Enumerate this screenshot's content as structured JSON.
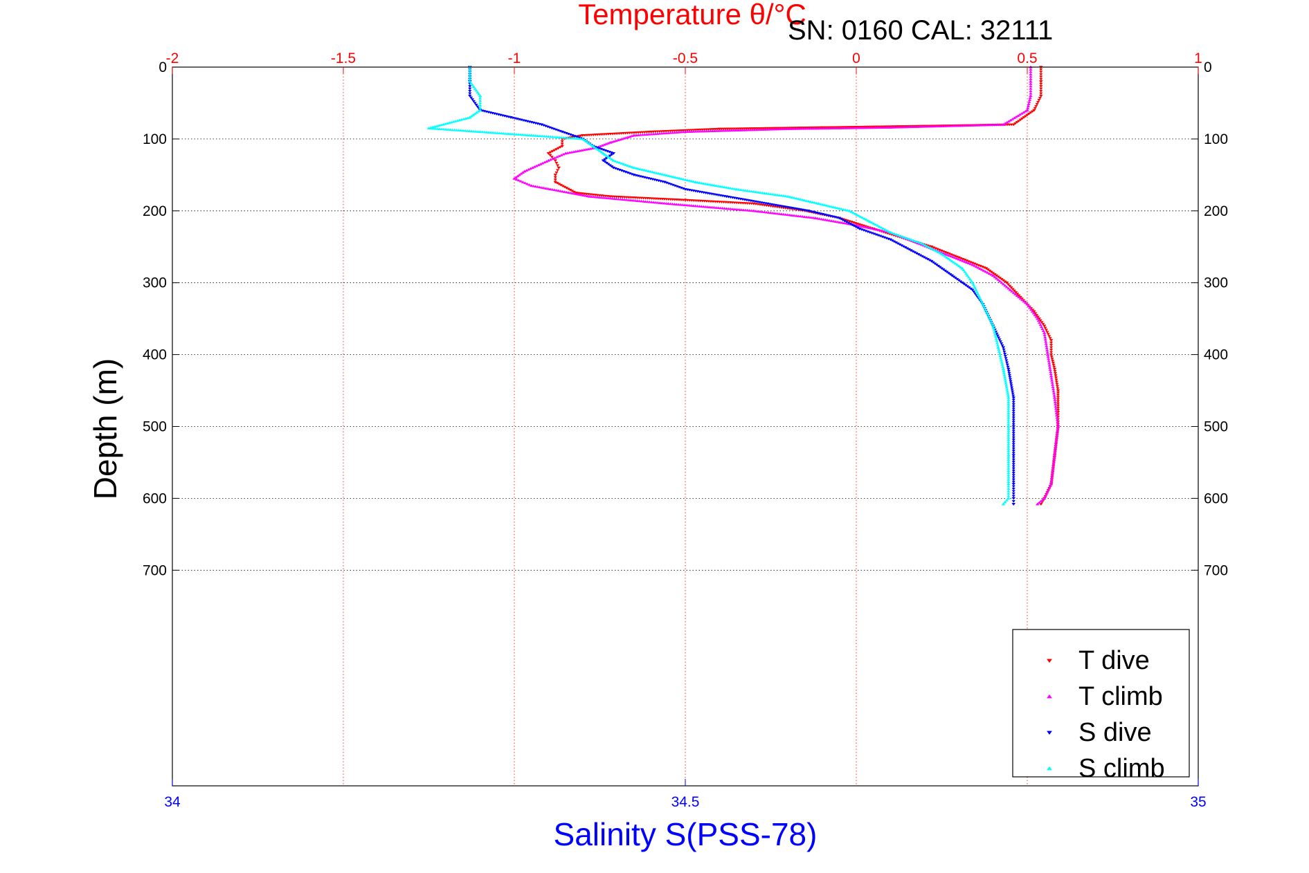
{
  "chart_data": {
    "type": "scatter",
    "title": "Temperature θ/°C",
    "subtitle": "SN: 0160  CAL: 32111",
    "ylabel": "Depth (m)",
    "xlabel_bottom": "Salinity S(PSS-78)",
    "y_axis": {
      "range": [
        0,
        1000
      ],
      "reversed": true,
      "ticks": [
        0,
        100,
        200,
        300,
        400,
        500,
        600,
        700
      ],
      "tick_labels": [
        "0",
        "100",
        "200",
        "300",
        "400",
        "500",
        "600",
        "700"
      ]
    },
    "x_top": {
      "range": [
        -2,
        1
      ],
      "ticks": [
        -2,
        -1.5,
        -1,
        -0.5,
        0,
        0.5,
        1
      ],
      "tick_labels": [
        "-2",
        "-1.5",
        "-1",
        "-0.5",
        "0",
        "0.5",
        "1"
      ],
      "color": "#ff0000"
    },
    "x_bottom": {
      "range": [
        34,
        35
      ],
      "ticks": [
        34,
        34.5,
        35
      ],
      "tick_labels": [
        "34",
        "34.5",
        "35"
      ],
      "color": "#0000ff"
    },
    "grid": true,
    "legend": {
      "position": "bottom-right",
      "entries": [
        "T dive",
        "T climb",
        "S dive",
        "S climb"
      ]
    },
    "series": [
      {
        "name": "T dive",
        "axis": "temperature",
        "color": "#ff0000",
        "marker": "triangle-down",
        "points": [
          [
            0.54,
            0
          ],
          [
            0.54,
            20
          ],
          [
            0.54,
            40
          ],
          [
            0.52,
            60
          ],
          [
            0.46,
            80
          ],
          [
            0.2,
            82
          ],
          [
            -0.1,
            84
          ],
          [
            -0.4,
            86
          ],
          [
            -0.6,
            90
          ],
          [
            -0.8,
            95
          ],
          [
            -0.86,
            100
          ],
          [
            -0.86,
            110
          ],
          [
            -0.9,
            120
          ],
          [
            -0.88,
            130
          ],
          [
            -0.87,
            140
          ],
          [
            -0.88,
            150
          ],
          [
            -0.88,
            160
          ],
          [
            -0.82,
            175
          ],
          [
            -0.72,
            180
          ],
          [
            -0.5,
            185
          ],
          [
            -0.3,
            190
          ],
          [
            -0.15,
            200
          ],
          [
            -0.05,
            210
          ],
          [
            0.05,
            225
          ],
          [
            0.15,
            240
          ],
          [
            0.22,
            250
          ],
          [
            0.3,
            265
          ],
          [
            0.38,
            280
          ],
          [
            0.44,
            300
          ],
          [
            0.48,
            320
          ],
          [
            0.52,
            340
          ],
          [
            0.55,
            360
          ],
          [
            0.57,
            380
          ],
          [
            0.57,
            400
          ],
          [
            0.58,
            420
          ],
          [
            0.59,
            450
          ],
          [
            0.59,
            480
          ],
          [
            0.59,
            500
          ],
          [
            0.58,
            540
          ],
          [
            0.57,
            580
          ],
          [
            0.55,
            600
          ],
          [
            0.54,
            608
          ]
        ]
      },
      {
        "name": "T climb",
        "axis": "temperature",
        "color": "#ff00ff",
        "marker": "triangle-up",
        "points": [
          [
            0.51,
            0
          ],
          [
            0.51,
            20
          ],
          [
            0.51,
            40
          ],
          [
            0.5,
            60
          ],
          [
            0.43,
            80
          ],
          [
            0.1,
            84
          ],
          [
            -0.2,
            86
          ],
          [
            -0.5,
            90
          ],
          [
            -0.65,
            95
          ],
          [
            -0.72,
            105
          ],
          [
            -0.76,
            112
          ],
          [
            -0.85,
            120
          ],
          [
            -0.9,
            130
          ],
          [
            -0.97,
            145
          ],
          [
            -1.0,
            155
          ],
          [
            -0.95,
            165
          ],
          [
            -0.78,
            180
          ],
          [
            -0.55,
            190
          ],
          [
            -0.3,
            200
          ],
          [
            -0.12,
            210
          ],
          [
            0.0,
            220
          ],
          [
            0.1,
            230
          ],
          [
            0.18,
            245
          ],
          [
            0.26,
            260
          ],
          [
            0.34,
            275
          ],
          [
            0.4,
            290
          ],
          [
            0.45,
            310
          ],
          [
            0.5,
            330
          ],
          [
            0.53,
            350
          ],
          [
            0.55,
            370
          ],
          [
            0.56,
            400
          ],
          [
            0.57,
            430
          ],
          [
            0.58,
            460
          ],
          [
            0.59,
            500
          ],
          [
            0.58,
            540
          ],
          [
            0.57,
            580
          ],
          [
            0.55,
            600
          ],
          [
            0.53,
            608
          ]
        ]
      },
      {
        "name": "S dive",
        "axis": "salinity",
        "color": "#0000ff",
        "marker": "triangle-down",
        "points": [
          [
            34.29,
            0
          ],
          [
            34.29,
            20
          ],
          [
            34.29,
            40
          ],
          [
            34.3,
            60
          ],
          [
            34.33,
            70
          ],
          [
            34.36,
            80
          ],
          [
            34.38,
            90
          ],
          [
            34.4,
            100
          ],
          [
            34.41,
            110
          ],
          [
            34.43,
            120
          ],
          [
            34.42,
            130
          ],
          [
            34.43,
            140
          ],
          [
            34.45,
            150
          ],
          [
            34.48,
            160
          ],
          [
            34.5,
            170
          ],
          [
            34.54,
            180
          ],
          [
            34.58,
            190
          ],
          [
            34.62,
            200
          ],
          [
            34.65,
            210
          ],
          [
            34.67,
            225
          ],
          [
            34.7,
            240
          ],
          [
            34.72,
            255
          ],
          [
            34.74,
            270
          ],
          [
            34.76,
            290
          ],
          [
            34.78,
            310
          ],
          [
            34.79,
            330
          ],
          [
            34.8,
            360
          ],
          [
            34.81,
            390
          ],
          [
            34.815,
            420
          ],
          [
            34.82,
            460
          ],
          [
            34.82,
            500
          ],
          [
            34.82,
            540
          ],
          [
            34.82,
            580
          ],
          [
            34.82,
            600
          ],
          [
            34.82,
            608
          ]
        ]
      },
      {
        "name": "S climb",
        "axis": "salinity",
        "color": "#00ffff",
        "marker": "triangle-up",
        "points": [
          [
            34.29,
            0
          ],
          [
            34.29,
            20
          ],
          [
            34.3,
            40
          ],
          [
            34.3,
            60
          ],
          [
            34.29,
            70
          ],
          [
            34.25,
            85
          ],
          [
            34.3,
            90
          ],
          [
            34.35,
            95
          ],
          [
            34.4,
            100
          ],
          [
            34.41,
            110
          ],
          [
            34.42,
            120
          ],
          [
            34.43,
            130
          ],
          [
            34.45,
            140
          ],
          [
            34.48,
            150
          ],
          [
            34.51,
            160
          ],
          [
            34.55,
            170
          ],
          [
            34.6,
            180
          ],
          [
            34.63,
            190
          ],
          [
            34.66,
            200
          ],
          [
            34.68,
            215
          ],
          [
            34.7,
            230
          ],
          [
            34.73,
            245
          ],
          [
            34.75,
            260
          ],
          [
            34.77,
            280
          ],
          [
            34.78,
            300
          ],
          [
            34.79,
            330
          ],
          [
            34.8,
            360
          ],
          [
            34.805,
            390
          ],
          [
            34.81,
            420
          ],
          [
            34.815,
            460
          ],
          [
            34.815,
            500
          ],
          [
            34.815,
            540
          ],
          [
            34.815,
            580
          ],
          [
            34.815,
            600
          ],
          [
            34.81,
            608
          ]
        ]
      }
    ]
  }
}
